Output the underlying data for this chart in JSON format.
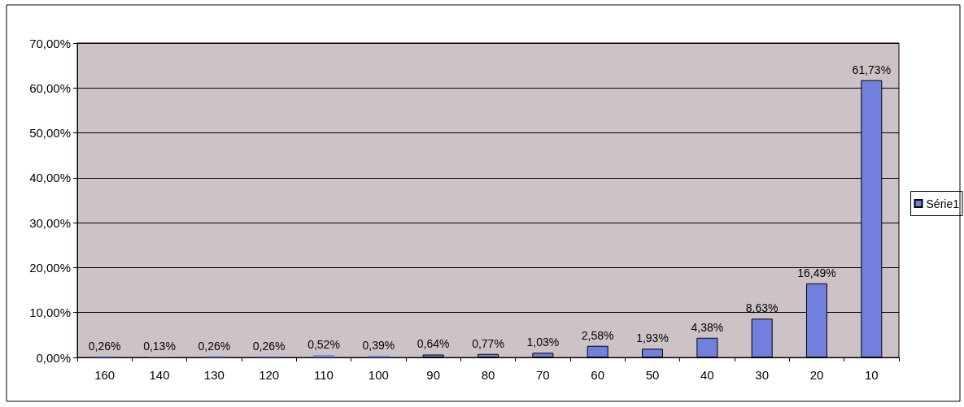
{
  "chart_data": {
    "type": "bar",
    "categories": [
      "160",
      "140",
      "130",
      "120",
      "110",
      "100",
      "90",
      "80",
      "70",
      "60",
      "50",
      "40",
      "30",
      "20",
      "10"
    ],
    "series": [
      {
        "name": "Série1",
        "color": "#7080dc",
        "values": [
          0.26,
          0.13,
          0.26,
          0.26,
          0.52,
          0.39,
          0.64,
          0.77,
          1.03,
          2.58,
          1.93,
          4.38,
          8.63,
          16.49,
          61.73
        ],
        "value_labels": [
          "0,26%",
          "0,13%",
          "0,26%",
          "0,26%",
          "0,52%",
          "0,39%",
          "0,64%",
          "0,77%",
          "1,03%",
          "2,58%",
          "1,93%",
          "4,38%",
          "8,63%",
          "16,49%",
          "61,73%"
        ]
      }
    ],
    "ylim": [
      0,
      70
    ],
    "yticks": [
      {
        "value": 0,
        "label": "0,00%"
      },
      {
        "value": 10,
        "label": "10,00%"
      },
      {
        "value": 20,
        "label": "20,00%"
      },
      {
        "value": 30,
        "label": "30,00%"
      },
      {
        "value": 40,
        "label": "40,00%"
      },
      {
        "value": 50,
        "label": "50,00%"
      },
      {
        "value": 60,
        "label": "60,00%"
      },
      {
        "value": 70,
        "label": "70,00%"
      }
    ],
    "grid": "y",
    "legend": "right"
  }
}
